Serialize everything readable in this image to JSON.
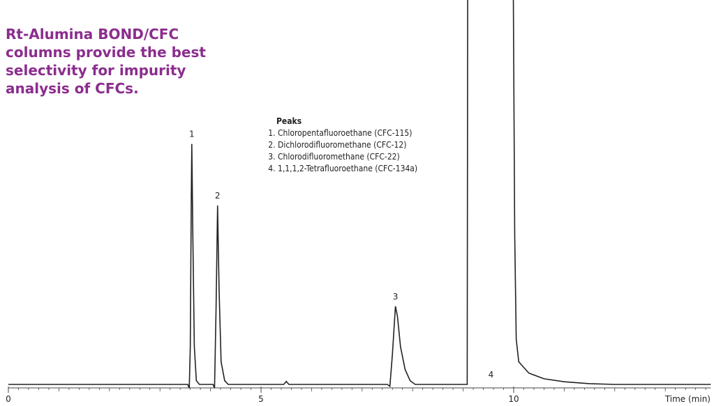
{
  "chart_data": {
    "type": "line",
    "title": "Rt-Alumina BOND/CFC columns provide the best selectivity for impurity analysis of CFCs.",
    "legend_title": "Peaks",
    "legend_items": [
      "Chloropentafluoroethane (CFC-115)",
      "Dichlorodifluoromethane (CFC-12)",
      "Chlorodifluoromethane (CFC-22)",
      "1,1,1,2-Tetrafluoroethane (CFC-134a)"
    ],
    "xlabel": "Time (min)",
    "x": [
      0,
      3.55,
      3.58,
      3.6,
      3.62,
      3.63,
      3.65,
      3.68,
      3.72,
      3.78,
      4.05,
      4.08,
      4.11,
      4.14,
      4.17,
      4.21,
      4.28,
      4.35,
      5.45,
      5.5,
      5.55,
      7.5,
      7.55,
      7.6,
      7.66,
      7.7,
      7.76,
      7.85,
      7.95,
      8.05,
      9.08,
      9.09,
      9.99,
      10.02,
      10.05,
      10.1,
      10.3,
      10.6,
      11,
      11.5,
      12,
      13.9
    ],
    "series": [
      {
        "color": "#222222",
        "values": [
          0,
          0,
          -1,
          10,
          50,
          63.7,
          40,
          10,
          1,
          0,
          0,
          -1,
          20,
          47.4,
          25,
          6,
          1,
          0,
          0,
          0.8,
          0,
          0,
          -0.5,
          8,
          20.7,
          18,
          10,
          4,
          1,
          0,
          0,
          110,
          110,
          40,
          12,
          6,
          3,
          1.5,
          0.7,
          0.2,
          0,
          0
        ]
      }
    ],
    "annotations": [
      {
        "text": "1",
        "x": 3.63
      },
      {
        "text": "2",
        "x": 4.14
      },
      {
        "text": "3",
        "x": 7.66
      },
      {
        "text": "4",
        "x": 9.55
      }
    ],
    "xlim": [
      0,
      13.9
    ],
    "ylim": [
      0,
      100
    ],
    "xticks": [
      0,
      5,
      10
    ],
    "xminor_step": 0.2
  }
}
